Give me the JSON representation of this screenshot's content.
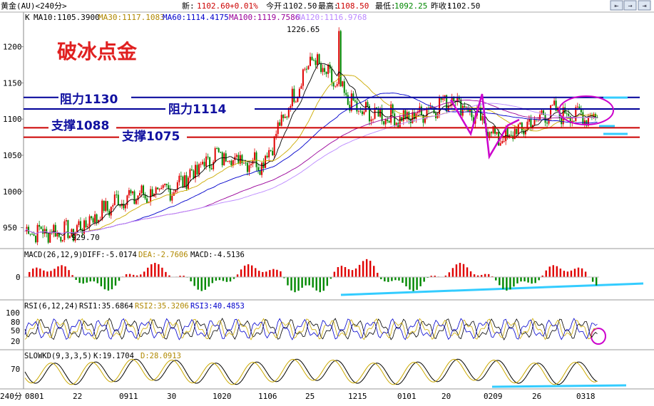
{
  "quote": {
    "symbol": "黄金(AU)<240分>",
    "new_label": "新:",
    "new_value": "1102.60",
    "change": "+0.01%",
    "open_label": "今开:",
    "open_value": "1102.50",
    "high_label": "最高:",
    "high_value": "1108.50",
    "low_label": "最低:",
    "low_value": "1092.25",
    "prev_label": "昨收:",
    "prev_value": "1102.50"
  },
  "ma_bar": {
    "k": "K",
    "ma10": "MA10:1105.3900",
    "ma30": "MA30:1117.1083",
    "ma60": "MA60:1114.4175",
    "ma100": "MA100:1119.7586",
    "ma120": "MA120:1116.9768"
  },
  "nav_buttons": [
    "⇤",
    "→",
    "⇥"
  ],
  "colors": {
    "ma10": "#000000",
    "ma30": "#ccaa00",
    "ma60": "#0000cc",
    "ma100": "#990099",
    "ma120": "#bb88ff",
    "candle_up": "#e00000",
    "candle_down": "#008800",
    "resistance": "#000099",
    "support": "#cc0000",
    "annotation": "#cc00cc",
    "trend": "#33ccff"
  },
  "annotations": {
    "headline": "破冰点金",
    "res1": "阻力1130",
    "res2": "阻力1114",
    "sup1": "支撑1088",
    "sup2": "支撑1075",
    "peak": "1226.65",
    "trough": "929.70"
  },
  "indicators": {
    "macd": {
      "name": "MACD(26,12,9)",
      "diff": "DIFF:-5.0174",
      "dea": "DEA:-2.7606",
      "macd": "MACD:-4.5136",
      "ticks": [
        "0"
      ]
    },
    "rsi": {
      "name": "RSI(6,12,24)",
      "rsi1": "RSI1:35.6864",
      "rsi2": "RSI2:35.3206",
      "rsi3": "RSI3:40.4853",
      "ticks": [
        "100",
        "80",
        "50",
        "20"
      ]
    },
    "kd": {
      "name": "SLOWKD(9,3,3,5)",
      "k": "K:19.1704",
      "d": "D:28.0913",
      "ticks": [
        "70"
      ]
    }
  },
  "x_axis": {
    "period_label": "240分",
    "ticks": [
      "0801",
      "22",
      "0911",
      "30",
      "1020",
      "1106",
      "25",
      "1215",
      "0101",
      "20",
      "0209",
      "26",
      "0318"
    ]
  },
  "chart_data": {
    "type": "candlestick",
    "title": "破冰点金",
    "instrument": "黄金(AU)",
    "period": "240分",
    "ylim": [
      925,
      1235
    ],
    "y_ticks": [
      950,
      1000,
      1050,
      1100,
      1150,
      1200
    ],
    "levels": [
      {
        "label": "阻力1130",
        "value": 1130,
        "kind": "resistance"
      },
      {
        "label": "阻力1114",
        "value": 1114,
        "kind": "resistance"
      },
      {
        "label": "支撑1088",
        "value": 1088,
        "kind": "support"
      },
      {
        "label": "支撑1075",
        "value": 1075,
        "kind": "support"
      }
    ],
    "close_path": {
      "x": [
        "0801",
        "22",
        "0911",
        "30",
        "1020",
        "1106",
        "25",
        "1215",
        "0101",
        "20",
        "0209",
        "26",
        "0318"
      ],
      "values": [
        945,
        943,
        990,
        1000,
        1050,
        1040,
        1185,
        1110,
        1100,
        1130,
        1070,
        1110,
        1102.6
      ],
      "peak": {
        "x": "25",
        "value": 1226.65
      },
      "trough": {
        "x": "22",
        "value": 929.7
      }
    },
    "last": {
      "close": 1102.6,
      "open": 1102.5,
      "high": 1108.5,
      "low": 1092.25,
      "prev_close": 1102.5
    }
  }
}
